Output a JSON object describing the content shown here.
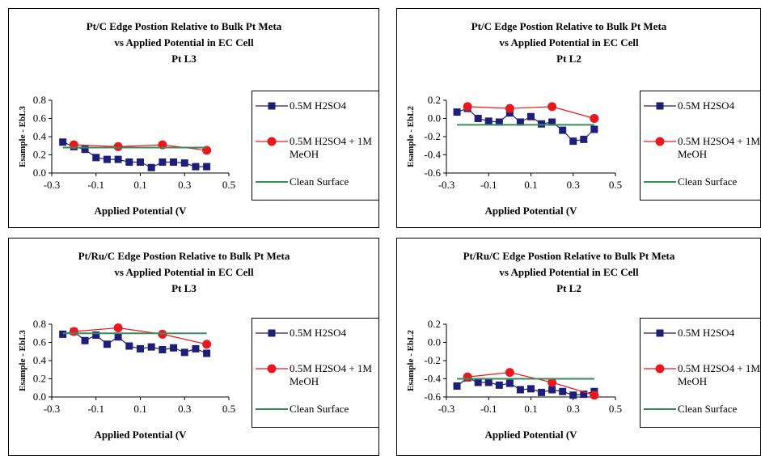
{
  "chart_data": [
    {
      "type": "line",
      "title_lines": [
        "Pt/C Edge Postion Relative to Bulk Pt Meta",
        "vs Applied Potential in EC Cell",
        "Pt L3"
      ],
      "xlabel": "Applied Potential (V",
      "ylabel": "Esample - EbL3",
      "xlim": [
        -0.3,
        0.5
      ],
      "ylim": [
        0,
        0.8
      ],
      "xticks": [
        "-0.3",
        "-0.1",
        "0.1",
        "0.3",
        "0.5"
      ],
      "xtick_values": [
        -0.3,
        -0.1,
        0.1,
        0.3,
        0.5
      ],
      "yticks": [
        "0.0",
        "0.2",
        "0.4",
        "0.6",
        "0.8"
      ],
      "ytick_values": [
        0,
        0.2,
        0.4,
        0.6,
        0.8
      ],
      "grid": false,
      "legend": "right",
      "series": [
        {
          "name": "0.5M H2SO4",
          "color": "#1e1e78",
          "marker": "square",
          "x": [
            -0.25,
            -0.2,
            -0.15,
            -0.1,
            -0.05,
            0.0,
            0.05,
            0.1,
            0.15,
            0.2,
            0.25,
            0.3,
            0.35,
            0.4
          ],
          "y": [
            0.34,
            0.29,
            0.26,
            0.17,
            0.15,
            0.15,
            0.12,
            0.12,
            0.06,
            0.12,
            0.12,
            0.11,
            0.07,
            0.07
          ]
        },
        {
          "name": "0.5M H2SO4 + 1M MeOH",
          "color": "#e8191e",
          "marker": "circle",
          "x": [
            -0.2,
            0.0,
            0.2,
            0.4
          ],
          "y": [
            0.31,
            0.29,
            0.31,
            0.25
          ]
        },
        {
          "name": "Clean Surface",
          "color": "#3a8a5a",
          "marker": "none",
          "x": [
            -0.25,
            0.4
          ],
          "y": [
            0.28,
            0.28
          ]
        }
      ]
    },
    {
      "type": "line",
      "title_lines": [
        "Pt/C Edge Postion Relative to Bulk Pt Meta",
        "vs Applied Potential in EC Cell",
        "Pt L2"
      ],
      "xlabel": "Applied Potential (V",
      "ylabel": "Esample - EbL2",
      "xlim": [
        -0.3,
        0.5
      ],
      "ylim": [
        -0.6,
        0.2
      ],
      "xticks": [
        "-0.3",
        "-0.1",
        "0.1",
        "0.3",
        "0.5"
      ],
      "xtick_values": [
        -0.3,
        -0.1,
        0.1,
        0.3,
        0.5
      ],
      "yticks": [
        "-0.6",
        "-0.4",
        "-0.2",
        "0.0",
        "0.2"
      ],
      "ytick_values": [
        -0.6,
        -0.4,
        -0.2,
        0,
        0.2
      ],
      "grid": false,
      "legend": "right",
      "series": [
        {
          "name": "0.5M H2SO4",
          "color": "#1e1e78",
          "marker": "square",
          "x": [
            -0.25,
            -0.2,
            -0.15,
            -0.1,
            -0.05,
            0.0,
            0.05,
            0.1,
            0.15,
            0.2,
            0.25,
            0.3,
            0.35,
            0.4
          ],
          "y": [
            0.07,
            0.11,
            0.0,
            -0.03,
            -0.04,
            0.06,
            -0.04,
            0.02,
            -0.06,
            -0.04,
            -0.13,
            -0.25,
            -0.23,
            -0.12
          ]
        },
        {
          "name": "0.5M H2SO4 + 1M MeOH",
          "color": "#e8191e",
          "marker": "circle",
          "x": [
            -0.2,
            0.0,
            0.2,
            0.4
          ],
          "y": [
            0.13,
            0.11,
            0.13,
            0.0
          ]
        },
        {
          "name": "Clean Surface",
          "color": "#3a8a5a",
          "marker": "none",
          "x": [
            -0.25,
            0.4
          ],
          "y": [
            -0.07,
            -0.07
          ]
        }
      ]
    },
    {
      "type": "line",
      "title_lines": [
        "Pt/Ru/C Edge Postion Relative to Bulk Pt Meta",
        "vs Applied Potential in EC Cell",
        "Pt L3"
      ],
      "xlabel": "Applied Potential (V",
      "ylabel": "Esample - EbL3",
      "xlim": [
        -0.3,
        0.5
      ],
      "ylim": [
        0,
        0.8
      ],
      "xticks": [
        "-0.3",
        "-0.1",
        "0.1",
        "0.3",
        "0.5"
      ],
      "xtick_values": [
        -0.3,
        -0.1,
        0.1,
        0.3,
        0.5
      ],
      "yticks": [
        "0.0",
        "0.2",
        "0.4",
        "0.6",
        "0.8"
      ],
      "ytick_values": [
        0,
        0.2,
        0.4,
        0.6,
        0.8
      ],
      "grid": false,
      "legend": "right",
      "series": [
        {
          "name": "0.5M H2SO4",
          "color": "#1e1e78",
          "marker": "square",
          "x": [
            -0.25,
            -0.2,
            -0.15,
            -0.1,
            -0.05,
            0.0,
            0.05,
            0.1,
            0.15,
            0.2,
            0.25,
            0.3,
            0.35,
            0.4
          ],
          "y": [
            0.69,
            0.72,
            0.62,
            0.68,
            0.58,
            0.66,
            0.56,
            0.53,
            0.55,
            0.52,
            0.54,
            0.49,
            0.53,
            0.48
          ]
        },
        {
          "name": "0.5M H2SO4 + 1M MeOH",
          "color": "#e8191e",
          "marker": "circle",
          "x": [
            -0.2,
            0.0,
            0.2,
            0.4
          ],
          "y": [
            0.72,
            0.76,
            0.69,
            0.58
          ]
        },
        {
          "name": "Clean Surface",
          "color": "#3a8a5a",
          "marker": "none",
          "x": [
            -0.25,
            0.4
          ],
          "y": [
            0.7,
            0.7
          ]
        }
      ]
    },
    {
      "type": "line",
      "title_lines": [
        "Pt/Ru/C Edge Postion Relative to Bulk Pt Meta",
        "vs Applied Potential in EC Cell",
        "Pt L2"
      ],
      "xlabel": "Applied Potential (V",
      "ylabel": "Esample - EbL2",
      "xlim": [
        -0.3,
        0.5
      ],
      "ylim": [
        -0.6,
        0.2
      ],
      "xticks": [
        "-0.3",
        "-0.1",
        "0.1",
        "0.3",
        "0.5"
      ],
      "xtick_values": [
        -0.3,
        -0.1,
        0.1,
        0.3,
        0.5
      ],
      "yticks": [
        "-0.6",
        "-0.4",
        "-0.2",
        "0.0",
        "0.2"
      ],
      "ytick_values": [
        -0.6,
        -0.4,
        -0.2,
        0,
        0.2
      ],
      "grid": false,
      "legend": "right",
      "series": [
        {
          "name": "0.5M H2SO4",
          "color": "#1e1e78",
          "marker": "square",
          "x": [
            -0.25,
            -0.2,
            -0.15,
            -0.1,
            -0.05,
            0.0,
            0.05,
            0.1,
            0.15,
            0.2,
            0.25,
            0.3,
            0.35,
            0.4
          ],
          "y": [
            -0.48,
            -0.39,
            -0.44,
            -0.44,
            -0.47,
            -0.45,
            -0.52,
            -0.51,
            -0.55,
            -0.52,
            -0.54,
            -0.58,
            -0.57,
            -0.54
          ]
        },
        {
          "name": "0.5M H2SO4 + 1M MeOH",
          "color": "#e8191e",
          "marker": "circle",
          "x": [
            -0.2,
            0.0,
            0.2,
            0.4
          ],
          "y": [
            -0.38,
            -0.33,
            -0.44,
            -0.58
          ]
        },
        {
          "name": "Clean Surface",
          "color": "#3a8a5a",
          "marker": "none",
          "x": [
            -0.25,
            0.4
          ],
          "y": [
            -0.4,
            -0.4
          ]
        }
      ]
    }
  ]
}
